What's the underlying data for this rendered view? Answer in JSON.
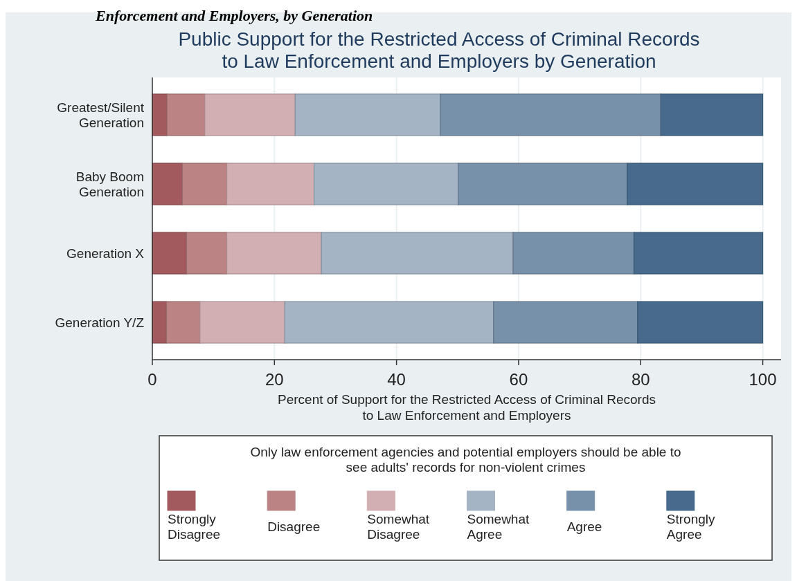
{
  "chart_data": {
    "type": "bar",
    "orientation": "horizontal",
    "stacked": true,
    "title": "Public Support for the Restricted Access of Criminal Records\nto Law Enforcement and Employers by Generation",
    "xlabel": "Percent of Support for the Restricted Access of Criminal Records\nto Law Enforcement and Employers",
    "legend_title": "Only law enforcement agencies and potential employers should be able to\nsee adults' records for non-violent crimes",
    "annotations": [
      "Enforcement and Employers, by Generation"
    ],
    "categories": [
      "Greatest/Silent\nGeneration",
      "Baby Boom\nGeneration",
      "Generation X",
      "Generation Y/Z"
    ],
    "series": [
      {
        "name": "Strongly\nDisagree",
        "color": "#a25a5e",
        "values": [
          2.4,
          4.9,
          5.6,
          2.3
        ]
      },
      {
        "name": "Disagree",
        "color": "#bc8384",
        "values": [
          6.2,
          7.3,
          6.6,
          5.5
        ]
      },
      {
        "name": "Somewhat\nDisagree",
        "color": "#d2afb2",
        "values": [
          14.8,
          14.3,
          15.5,
          13.9
        ]
      },
      {
        "name": "Somewhat\nAgree",
        "color": "#a4b4c5",
        "values": [
          23.8,
          23.6,
          31.4,
          34.2
        ]
      },
      {
        "name": "Agree",
        "color": "#7891aa",
        "values": [
          36.1,
          27.7,
          19.8,
          23.6
        ]
      },
      {
        "name": "Strongly\nAgree",
        "color": "#476a8d",
        "values": [
          16.7,
          22.2,
          21.1,
          20.5
        ]
      }
    ],
    "xlim": [
      0,
      103
    ],
    "xticks": [
      0,
      20,
      40,
      60,
      80,
      100
    ],
    "grid": "x",
    "legend": "bottom"
  }
}
